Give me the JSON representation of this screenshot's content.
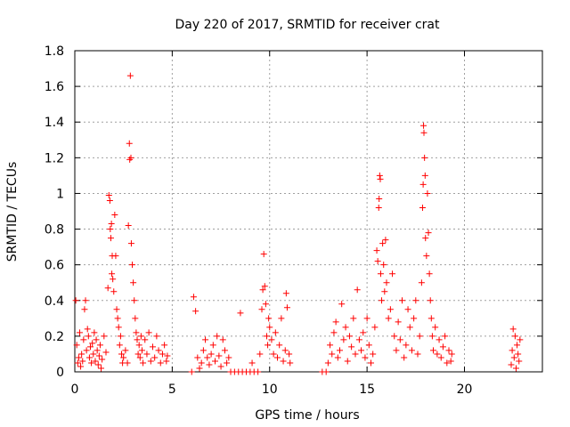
{
  "chart_data": {
    "type": "scatter",
    "title": "Day 220 of 2017, SRMTID for receiver crat",
    "xlabel": "GPS time / hours",
    "ylabel": "SRMTID / TECUs",
    "xlim": [
      0,
      24
    ],
    "ylim": [
      0,
      1.8
    ],
    "xticks": [
      0,
      5,
      10,
      15,
      20
    ],
    "xtick_labels": [
      "0",
      "5",
      "10",
      "15",
      "20"
    ],
    "yticks": [
      0,
      0.2,
      0.4,
      0.6,
      0.8,
      1,
      1.2,
      1.4,
      1.6,
      1.8
    ],
    "ytick_labels": [
      "0",
      "0.2",
      "0.4",
      "0.6",
      "0.8",
      "1",
      "1.2",
      "1.4",
      "1.6",
      "1.8"
    ],
    "grid": true,
    "marker": "+",
    "color": "#ff0000",
    "series": [
      {
        "name": "SRMTID",
        "points": [
          [
            0.05,
            0.4
          ],
          [
            0.1,
            0.15
          ],
          [
            0.15,
            0.05
          ],
          [
            0.2,
            0.08
          ],
          [
            0.25,
            0.22
          ],
          [
            0.3,
            0.03
          ],
          [
            0.35,
            0.1
          ],
          [
            0.4,
            0.06
          ],
          [
            0.45,
            0.18
          ],
          [
            0.5,
            0.35
          ],
          [
            0.55,
            0.4
          ],
          [
            0.6,
            0.12
          ],
          [
            0.65,
            0.24
          ],
          [
            0.7,
            0.2
          ],
          [
            0.75,
            0.08
          ],
          [
            0.8,
            0.14
          ],
          [
            0.85,
            0.05
          ],
          [
            0.9,
            0.16
          ],
          [
            0.95,
            0.1
          ],
          [
            1.0,
            0.22
          ],
          [
            1.05,
            0.06
          ],
          [
            1.1,
            0.18
          ],
          [
            1.15,
            0.12
          ],
          [
            1.2,
            0.04
          ],
          [
            1.25,
            0.09
          ],
          [
            1.3,
            0.15
          ],
          [
            1.35,
            0.02
          ],
          [
            1.4,
            0.07
          ],
          [
            1.5,
            0.2
          ],
          [
            1.6,
            0.11
          ],
          [
            1.7,
            0.47
          ],
          [
            1.75,
            0.99
          ],
          [
            1.8,
            0.96
          ],
          [
            1.82,
            0.8
          ],
          [
            1.85,
            0.75
          ],
          [
            1.88,
            0.83
          ],
          [
            1.9,
            0.55
          ],
          [
            1.92,
            0.65
          ],
          [
            1.95,
            0.52
          ],
          [
            2.0,
            0.45
          ],
          [
            2.05,
            0.88
          ],
          [
            2.1,
            0.65
          ],
          [
            2.15,
            0.35
          ],
          [
            2.2,
            0.3
          ],
          [
            2.25,
            0.25
          ],
          [
            2.3,
            0.15
          ],
          [
            2.35,
            0.2
          ],
          [
            2.4,
            0.1
          ],
          [
            2.45,
            0.05
          ],
          [
            2.5,
            0.08
          ],
          [
            2.6,
            0.12
          ],
          [
            2.7,
            0.05
          ],
          [
            2.75,
            0.82
          ],
          [
            2.8,
            1.28
          ],
          [
            2.82,
            1.19
          ],
          [
            2.85,
            1.66
          ],
          [
            2.88,
            1.2
          ],
          [
            2.9,
            0.72
          ],
          [
            2.95,
            0.6
          ],
          [
            3.0,
            0.5
          ],
          [
            3.05,
            0.4
          ],
          [
            3.1,
            0.3
          ],
          [
            3.15,
            0.22
          ],
          [
            3.2,
            0.18
          ],
          [
            3.25,
            0.1
          ],
          [
            3.3,
            0.15
          ],
          [
            3.35,
            0.08
          ],
          [
            3.4,
            0.2
          ],
          [
            3.45,
            0.12
          ],
          [
            3.5,
            0.05
          ],
          [
            3.6,
            0.18
          ],
          [
            3.7,
            0.1
          ],
          [
            3.8,
            0.22
          ],
          [
            3.9,
            0.06
          ],
          [
            4.0,
            0.14
          ],
          [
            4.1,
            0.08
          ],
          [
            4.2,
            0.2
          ],
          [
            4.3,
            0.12
          ],
          [
            4.4,
            0.05
          ],
          [
            4.5,
            0.1
          ],
          [
            4.6,
            0.15
          ],
          [
            4.7,
            0.06
          ],
          [
            4.75,
            0.09
          ],
          [
            6.0,
            0.0
          ],
          [
            6.1,
            0.42
          ],
          [
            6.2,
            0.34
          ],
          [
            6.3,
            0.08
          ],
          [
            6.4,
            0.02
          ],
          [
            6.5,
            0.05
          ],
          [
            6.6,
            0.12
          ],
          [
            6.7,
            0.18
          ],
          [
            6.8,
            0.08
          ],
          [
            6.9,
            0.04
          ],
          [
            7.0,
            0.1
          ],
          [
            7.1,
            0.15
          ],
          [
            7.2,
            0.06
          ],
          [
            7.3,
            0.2
          ],
          [
            7.4,
            0.09
          ],
          [
            7.5,
            0.03
          ],
          [
            7.6,
            0.18
          ],
          [
            7.7,
            0.12
          ],
          [
            7.8,
            0.05
          ],
          [
            7.9,
            0.08
          ],
          [
            8.0,
            0.0
          ],
          [
            8.2,
            0.0
          ],
          [
            8.4,
            0.0
          ],
          [
            8.5,
            0.33
          ],
          [
            8.6,
            0.0
          ],
          [
            8.8,
            0.0
          ],
          [
            9.0,
            0.0
          ],
          [
            9.1,
            0.05
          ],
          [
            9.2,
            0.0
          ],
          [
            9.4,
            0.0
          ],
          [
            9.5,
            0.1
          ],
          [
            9.6,
            0.35
          ],
          [
            9.65,
            0.46
          ],
          [
            9.7,
            0.66
          ],
          [
            9.75,
            0.48
          ],
          [
            9.8,
            0.38
          ],
          [
            9.85,
            0.2
          ],
          [
            9.9,
            0.15
          ],
          [
            9.95,
            0.3
          ],
          [
            10.0,
            0.25
          ],
          [
            10.1,
            0.18
          ],
          [
            10.2,
            0.1
          ],
          [
            10.3,
            0.22
          ],
          [
            10.4,
            0.08
          ],
          [
            10.5,
            0.15
          ],
          [
            10.6,
            0.3
          ],
          [
            10.7,
            0.06
          ],
          [
            10.8,
            0.12
          ],
          [
            10.85,
            0.44
          ],
          [
            10.9,
            0.36
          ],
          [
            11.0,
            0.1
          ],
          [
            11.05,
            0.05
          ],
          [
            12.7,
            0.0
          ],
          [
            12.9,
            0.0
          ],
          [
            13.0,
            0.05
          ],
          [
            13.1,
            0.15
          ],
          [
            13.2,
            0.1
          ],
          [
            13.3,
            0.22
          ],
          [
            13.4,
            0.28
          ],
          [
            13.5,
            0.08
          ],
          [
            13.6,
            0.12
          ],
          [
            13.7,
            0.38
          ],
          [
            13.8,
            0.18
          ],
          [
            13.9,
            0.25
          ],
          [
            14.0,
            0.06
          ],
          [
            14.1,
            0.2
          ],
          [
            14.2,
            0.14
          ],
          [
            14.3,
            0.3
          ],
          [
            14.4,
            0.1
          ],
          [
            14.5,
            0.46
          ],
          [
            14.6,
            0.18
          ],
          [
            14.7,
            0.12
          ],
          [
            14.8,
            0.22
          ],
          [
            14.9,
            0.08
          ],
          [
            15.0,
            0.3
          ],
          [
            15.1,
            0.15
          ],
          [
            15.2,
            0.05
          ],
          [
            15.3,
            0.1
          ],
          [
            15.4,
            0.25
          ],
          [
            15.5,
            0.68
          ],
          [
            15.55,
            0.62
          ],
          [
            15.6,
            0.92
          ],
          [
            15.62,
            0.97
          ],
          [
            15.65,
            1.1
          ],
          [
            15.68,
            1.08
          ],
          [
            15.7,
            0.55
          ],
          [
            15.75,
            0.4
          ],
          [
            15.8,
            0.72
          ],
          [
            15.85,
            0.6
          ],
          [
            15.9,
            0.45
          ],
          [
            15.95,
            0.74
          ],
          [
            16.0,
            0.5
          ],
          [
            16.1,
            0.3
          ],
          [
            16.2,
            0.35
          ],
          [
            16.3,
            0.55
          ],
          [
            16.4,
            0.2
          ],
          [
            16.5,
            0.12
          ],
          [
            16.6,
            0.28
          ],
          [
            16.7,
            0.18
          ],
          [
            16.8,
            0.4
          ],
          [
            16.9,
            0.08
          ],
          [
            17.0,
            0.15
          ],
          [
            17.1,
            0.35
          ],
          [
            17.2,
            0.25
          ],
          [
            17.3,
            0.12
          ],
          [
            17.4,
            0.3
          ],
          [
            17.5,
            0.4
          ],
          [
            17.6,
            0.1
          ],
          [
            17.7,
            0.2
          ],
          [
            17.8,
            0.5
          ],
          [
            17.85,
            0.92
          ],
          [
            17.88,
            1.05
          ],
          [
            17.9,
            1.38
          ],
          [
            17.92,
            1.34
          ],
          [
            17.95,
            1.2
          ],
          [
            17.98,
            1.1
          ],
          [
            18.0,
            0.75
          ],
          [
            18.05,
            0.65
          ],
          [
            18.1,
            1.0
          ],
          [
            18.15,
            0.78
          ],
          [
            18.2,
            0.55
          ],
          [
            18.25,
            0.4
          ],
          [
            18.3,
            0.3
          ],
          [
            18.35,
            0.2
          ],
          [
            18.4,
            0.12
          ],
          [
            18.5,
            0.25
          ],
          [
            18.6,
            0.1
          ],
          [
            18.7,
            0.18
          ],
          [
            18.8,
            0.08
          ],
          [
            18.9,
            0.14
          ],
          [
            19.0,
            0.2
          ],
          [
            19.1,
            0.05
          ],
          [
            19.2,
            0.12
          ],
          [
            19.3,
            0.06
          ],
          [
            19.35,
            0.1
          ],
          [
            22.4,
            0.04
          ],
          [
            22.45,
            0.12
          ],
          [
            22.5,
            0.24
          ],
          [
            22.55,
            0.08
          ],
          [
            22.6,
            0.2
          ],
          [
            22.65,
            0.02
          ],
          [
            22.7,
            0.15
          ],
          [
            22.75,
            0.1
          ],
          [
            22.8,
            0.06
          ],
          [
            22.85,
            0.18
          ]
        ]
      }
    ]
  }
}
